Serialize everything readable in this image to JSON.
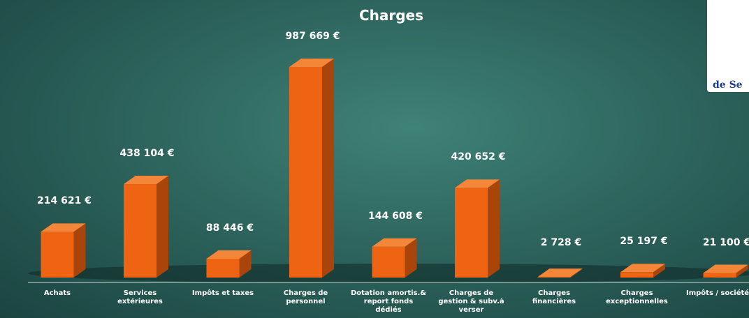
{
  "chart_data": {
    "type": "bar3d",
    "title": "Charges",
    "categories": [
      "Achats",
      "Services\nextérieures",
      "Impôts et taxes",
      "Charges de\npersonnel",
      "Dotation amortis.&\nreport fonds\ndédiés",
      "Charges de\ngestion & subv.à\nverser",
      "Charges\nfinancières",
      "Charges\nexceptionnelles",
      "Impôts / sociétés"
    ],
    "values": [
      214621,
      438104,
      88446,
      987669,
      144608,
      420652,
      2728,
      25197,
      21100
    ],
    "value_labels": [
      "214 621 €",
      "438 104 €",
      "88 446 €",
      "987 669 €",
      "144 608 €",
      "420 652 €",
      "2 728 €",
      "25 197 €",
      "21 100 €"
    ],
    "color": "#ee6412"
  },
  "logo": {
    "text": "de Se"
  }
}
